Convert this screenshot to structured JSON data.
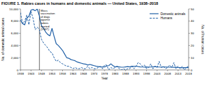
{
  "chart_data": {
    "type": "line",
    "title": "FIGURE 1. Rabies cases in humans and domestic animals — United States, 1938–2018",
    "x_label": "Year",
    "y_label": "No. of domestic animal cases",
    "y2_label": "No. of human cases",
    "x": [
      1938,
      1939,
      1940,
      1941,
      1942,
      1943,
      1944,
      1945,
      1946,
      1947,
      1948,
      1949,
      1950,
      1951,
      1952,
      1953,
      1954,
      1955,
      1956,
      1957,
      1958,
      1959,
      1960,
      1961,
      1962,
      1963,
      1964,
      1965,
      1966,
      1967,
      1968,
      1969,
      1970,
      1971,
      1972,
      1973,
      1974,
      1975,
      1976,
      1977,
      1978,
      1979,
      1980,
      1981,
      1982,
      1983,
      1984,
      1985,
      1986,
      1987,
      1988,
      1989,
      1990,
      1991,
      1992,
      1993,
      1994,
      1995,
      1996,
      1997,
      1998,
      1999,
      2000,
      2001,
      2002,
      2003,
      2004,
      2005,
      2006,
      2007,
      2008,
      2009,
      2010,
      2011,
      2012,
      2013,
      2014,
      2015,
      2016,
      2017,
      2018
    ],
    "series": [
      {
        "name": "Domestic animals",
        "color": "#1f5fa6",
        "line_style": "solid",
        "values": [
          8200,
          7600,
          7400,
          8500,
          8800,
          9800,
          9900,
          9700,
          10000,
          8800,
          7200,
          6800,
          6200,
          5800,
          5600,
          6800,
          5500,
          4300,
          4000,
          3600,
          3200,
          2600,
          2000,
          1900,
          1700,
          1600,
          1500,
          1300,
          1200,
          1100,
          1000,
          950,
          800,
          900,
          800,
          700,
          600,
          550,
          500,
          500,
          480,
          650,
          700,
          1000,
          700,
          500,
          550,
          500,
          450,
          450,
          500,
          550,
          500,
          600,
          580,
          620,
          550,
          500,
          480,
          450,
          500,
          450,
          480,
          500,
          550,
          500,
          480,
          450,
          500,
          480,
          460,
          450,
          420,
          440,
          430,
          400,
          380,
          350,
          380,
          370,
          380
        ]
      },
      {
        "name": "Humans",
        "color": "#1f5fa6",
        "line_style": "dashed",
        "axis": "y2",
        "values": [
          47,
          38,
          40,
          45,
          37,
          48,
          42,
          33,
          35,
          33,
          25,
          22,
          20,
          18,
          15,
          14,
          10,
          7,
          8,
          6,
          5,
          4,
          3,
          3,
          2,
          1,
          2,
          1,
          1,
          2,
          1,
          1,
          3,
          1,
          2,
          1,
          1,
          2,
          3,
          1,
          4,
          4,
          0,
          2,
          1,
          2,
          3,
          1,
          0,
          1,
          0,
          1,
          1,
          3,
          1,
          3,
          6,
          5,
          3,
          4,
          1,
          2,
          5,
          1,
          3,
          2,
          7,
          2,
          3,
          1,
          2,
          4,
          2,
          6,
          1,
          3,
          1,
          3,
          0,
          2,
          3
        ]
      }
    ],
    "xlim": [
      1938,
      2018
    ],
    "xticks": [
      1938,
      1943,
      1948,
      1953,
      1958,
      1963,
      1968,
      1973,
      1978,
      1983,
      1988,
      1993,
      1998,
      2003,
      2008,
      2013,
      2018
    ],
    "ylim": [
      0,
      10000
    ],
    "yticks": [
      0,
      {
        "value": 2000,
        "label": "2,000"
      },
      {
        "value": 4000,
        "label": "4,000"
      },
      {
        "value": 6000,
        "label": "6,000"
      },
      {
        "value": 8000,
        "label": "8,000"
      },
      {
        "value": 10000,
        "label": "10,000"
      }
    ],
    "y2lim": [
      0,
      50
    ],
    "y2ticks": [
      0,
      10,
      20,
      30,
      40,
      50
    ],
    "annotations": [
      {
        "x": 1947,
        "text": "Mass vaccination of dogs against rabies started (1947)"
      }
    ],
    "legend": "upper right",
    "grid": false
  }
}
